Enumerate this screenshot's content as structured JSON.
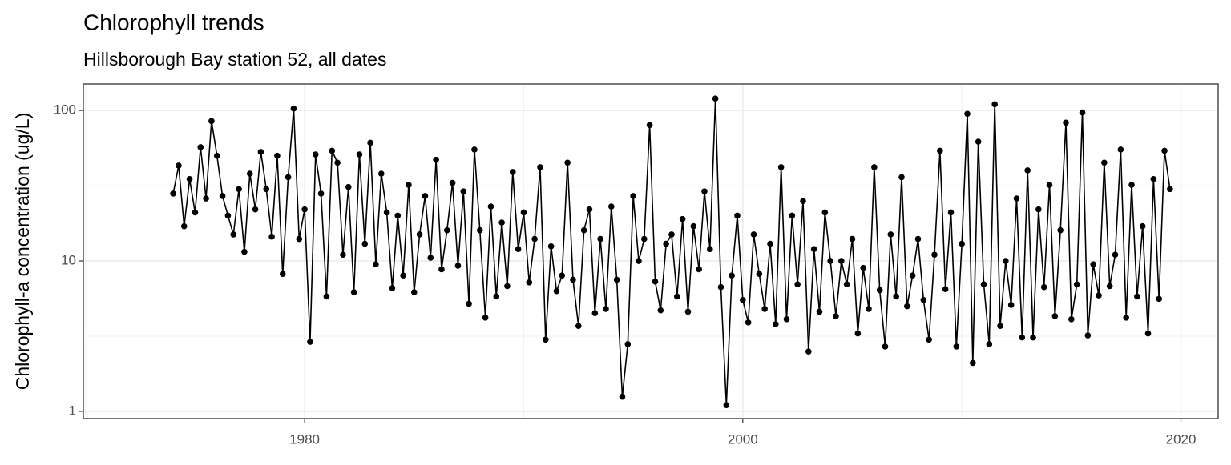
{
  "chart_data": {
    "type": "line",
    "title": "Chlorophyll trends",
    "subtitle": "Hillsborough Bay station 52, all dates",
    "y_label": "Chlorophyll-a concentration (ug/L)",
    "xlim": [
      1969.9,
      2021.7
    ],
    "xticks": [
      1980,
      2000,
      2020
    ],
    "xminor": [
      1970,
      1990,
      2010
    ],
    "ylim": [
      0.895,
      150
    ],
    "yticks": [
      1,
      10,
      100
    ],
    "yminor": [
      3.162,
      31.62
    ],
    "log_y": true,
    "grid": true,
    "series": [
      {
        "name": "Chlorophyll-a",
        "color": "#000000",
        "x": [
          1974,
          1974.25,
          1974.5,
          1974.75,
          1975,
          1975.25,
          1975.5,
          1975.75,
          1976,
          1976.25,
          1976.5,
          1976.75,
          1977,
          1977.25,
          1977.5,
          1977.75,
          1978,
          1978.25,
          1978.5,
          1978.75,
          1979,
          1979.25,
          1979.5,
          1979.75,
          1980,
          1980.25,
          1980.5,
          1980.75,
          1981,
          1981.25,
          1981.5,
          1981.75,
          1982,
          1982.25,
          1982.5,
          1982.75,
          1983,
          1983.25,
          1983.5,
          1983.75,
          1984,
          1984.25,
          1984.5,
          1984.75,
          1985,
          1985.25,
          1985.5,
          1985.75,
          1986,
          1986.25,
          1986.5,
          1986.75,
          1987,
          1987.25,
          1987.5,
          1987.75,
          1988,
          1988.25,
          1988.5,
          1988.75,
          1989,
          1989.25,
          1989.5,
          1989.75,
          1990,
          1990.25,
          1990.5,
          1990.75,
          1991,
          1991.25,
          1991.5,
          1991.75,
          1992,
          1992.25,
          1992.5,
          1992.75,
          1993,
          1993.25,
          1993.5,
          1993.75,
          1994,
          1994.25,
          1994.5,
          1994.75,
          1995,
          1995.25,
          1995.5,
          1995.75,
          1996,
          1996.25,
          1996.5,
          1996.75,
          1997,
          1997.25,
          1997.5,
          1997.75,
          1998,
          1998.25,
          1998.5,
          1998.75,
          1999,
          1999.25,
          1999.5,
          1999.75,
          2000,
          2000.25,
          2000.5,
          2000.75,
          2001,
          2001.25,
          2001.5,
          2001.75,
          2002,
          2002.25,
          2002.5,
          2002.75,
          2003,
          2003.25,
          2003.5,
          2003.75,
          2004,
          2004.25,
          2004.5,
          2004.75,
          2005,
          2005.25,
          2005.5,
          2005.75,
          2006,
          2006.25,
          2006.5,
          2006.75,
          2007,
          2007.25,
          2007.5,
          2007.75,
          2008,
          2008.25,
          2008.5,
          2008.75,
          2009,
          2009.25,
          2009.5,
          2009.75,
          2010,
          2010.25,
          2010.5,
          2010.75,
          2011,
          2011.25,
          2011.5,
          2011.75,
          2012,
          2012.25,
          2012.5,
          2012.75,
          2013,
          2013.25,
          2013.5,
          2013.75,
          2014,
          2014.25,
          2014.5,
          2014.75,
          2015,
          2015.25,
          2015.5,
          2015.75,
          2016,
          2016.25,
          2016.5,
          2016.75,
          2017,
          2017.25,
          2017.5,
          2017.75,
          2018,
          2018.25,
          2018.5,
          2018.75,
          2019,
          2019.25,
          2019.5
        ],
        "values": [
          28,
          43,
          17,
          35,
          21,
          57,
          26,
          85,
          50,
          27,
          20,
          15,
          30,
          11.5,
          38,
          22,
          53,
          30,
          14.5,
          50,
          8.2,
          36,
          103,
          14,
          22,
          2.9,
          51,
          28,
          5.8,
          54,
          45,
          11,
          31,
          6.2,
          51,
          13,
          61,
          9.5,
          38,
          21,
          6.6,
          20,
          8,
          32,
          6.2,
          15,
          27,
          10.5,
          47,
          8.8,
          16,
          33,
          9.3,
          29,
          5.2,
          55,
          16,
          4.2,
          23,
          5.8,
          18,
          6.8,
          39,
          12,
          21,
          7.2,
          14,
          42,
          3,
          12.5,
          6.3,
          8,
          45,
          7.5,
          3.7,
          16,
          22,
          4.5,
          14,
          4.8,
          23,
          7.5,
          1.25,
          2.8,
          27,
          10,
          14,
          80,
          7.3,
          4.7,
          13,
          15,
          5.8,
          19,
          4.6,
          17,
          8.8,
          29,
          12,
          120,
          6.7,
          1.1,
          8,
          20,
          5.5,
          3.9,
          15,
          8.2,
          4.8,
          13,
          3.8,
          42,
          4.1,
          20,
          7,
          25,
          2.5,
          12,
          4.6,
          21,
          10,
          4.3,
          10,
          7,
          14,
          3.3,
          9,
          4.8,
          42,
          6.4,
          2.7,
          15,
          5.8,
          36,
          5,
          8,
          14,
          5.5,
          3,
          11,
          54,
          6.5,
          21,
          2.7,
          13,
          95,
          2.1,
          62,
          7,
          2.8,
          110,
          3.7,
          10,
          5.1,
          26,
          3.1,
          40,
          3.1,
          22,
          6.7,
          32,
          4.3,
          16,
          83,
          4.1,
          7,
          97,
          3.2,
          9.5,
          5.9,
          45,
          6.8,
          11,
          55,
          4.2,
          32,
          5.8,
          17,
          3.3,
          35,
          5.6,
          54,
          30
        ]
      }
    ]
  }
}
